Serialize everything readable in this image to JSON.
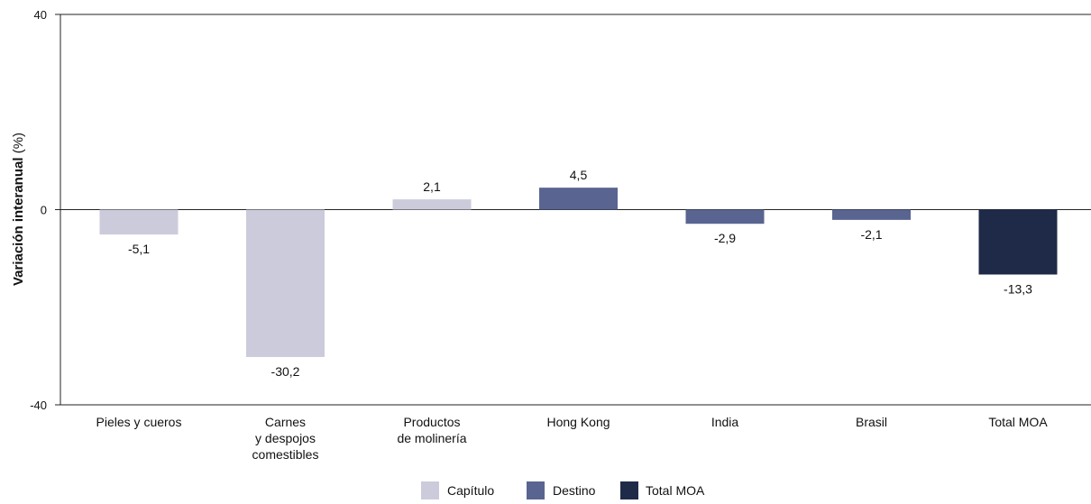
{
  "chart_data": {
    "type": "bar",
    "title": "",
    "xlabel": "",
    "ylabel": "Variación interanual",
    "ylabel_unit": "(%)",
    "ylim": [
      -40,
      40
    ],
    "yticks": [
      "40",
      "0",
      "-40"
    ],
    "ytick_values": [
      40,
      0,
      -40
    ],
    "grid": false,
    "legend_position": "bottom",
    "categories": [
      [
        "Pieles y cueros"
      ],
      [
        "Carnes",
        "y despojos",
        "comestibles"
      ],
      [
        "Productos",
        "de molinería"
      ],
      [
        "Hong Kong"
      ],
      [
        "India"
      ],
      [
        "Brasil"
      ],
      [
        "Total MOA"
      ]
    ],
    "values": [
      -5.1,
      -30.2,
      2.1,
      4.5,
      -2.9,
      -2.1,
      -13.3
    ],
    "value_labels": [
      "-5,1",
      "-30,2",
      "2,1",
      "4,5",
      "-2,9",
      "-2,1",
      "-13,3"
    ],
    "groups": [
      "capitulo",
      "capitulo",
      "capitulo",
      "destino",
      "destino",
      "destino",
      "total"
    ],
    "legend": [
      {
        "key": "capitulo",
        "label": "Capítulo",
        "color": "#cccbdc"
      },
      {
        "key": "destino",
        "label": "Destino",
        "color": "#596590"
      },
      {
        "key": "total",
        "label": "Total MOA",
        "color": "#1f2a48"
      }
    ]
  }
}
